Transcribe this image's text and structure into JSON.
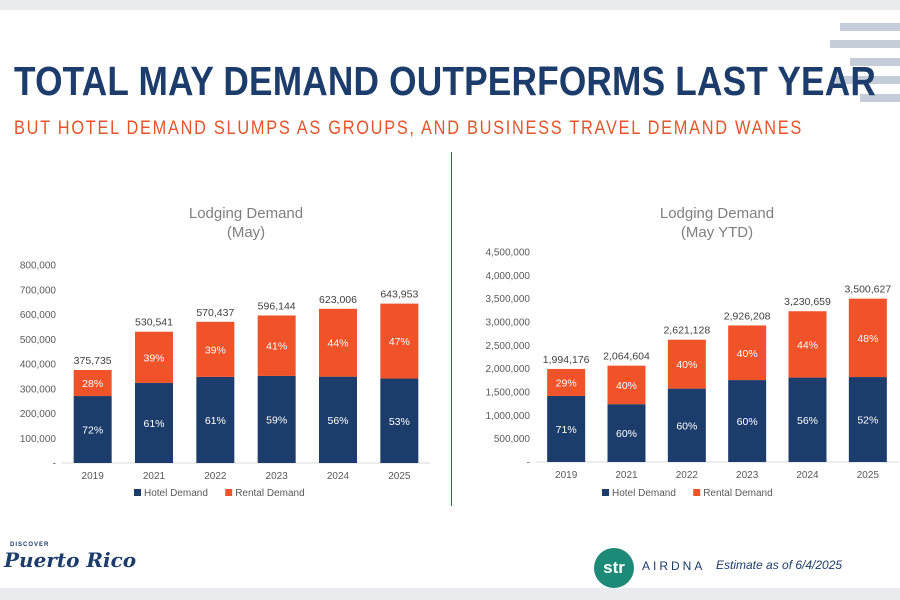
{
  "header": {
    "title": "TOTAL MAY DEMAND OUTPERFORMS LAST YEAR",
    "subtitle": "BUT HOTEL DEMAND SLUMPS AS GROUPS, AND BUSINESS TRAVEL DEMAND WANES"
  },
  "colors": {
    "title": "#1c3d6b",
    "subtitle": "#e6532a",
    "hotel": "#1c3d6b",
    "rental": "#f0522a",
    "divider": "#c0283a"
  },
  "chart_data": [
    {
      "type": "bar",
      "stacked": true,
      "title": [
        "Lodging Demand",
        "(May)"
      ],
      "categories": [
        "2019",
        "2021",
        "2022",
        "2023",
        "2024",
        "2025"
      ],
      "totals": [
        375735,
        530541,
        570437,
        596144,
        623006,
        643953
      ],
      "total_labels": [
        "375,735",
        "530,541",
        "570,437",
        "596,144",
        "623,006",
        "643,953"
      ],
      "series": [
        {
          "name": "Hotel Demand",
          "pct": [
            72,
            61,
            61,
            59,
            56,
            53
          ],
          "labels": [
            "72%",
            "61%",
            "61%",
            "59%",
            "56%",
            "53%"
          ]
        },
        {
          "name": "Rental Demand",
          "pct": [
            28,
            39,
            39,
            41,
            44,
            47
          ],
          "labels": [
            "28%",
            "39%",
            "39%",
            "41%",
            "44%",
            "47%"
          ]
        }
      ],
      "ylim": [
        0,
        800000
      ],
      "yticks": [
        "-",
        "100,000",
        "200,000",
        "300,000",
        "400,000",
        "500,000",
        "600,000",
        "700,000",
        "800,000"
      ],
      "legend": "bottom"
    },
    {
      "type": "bar",
      "stacked": true,
      "title": [
        "Lodging Demand",
        "(May YTD)"
      ],
      "categories": [
        "2019",
        "2021",
        "2022",
        "2023",
        "2024",
        "2025"
      ],
      "totals": [
        1994176,
        2064604,
        2621128,
        2926208,
        3230659,
        3500627
      ],
      "total_labels": [
        "1,994,176",
        "2,064,604",
        "2,621,128",
        "2,926,208",
        "3,230,659",
        "3,500,627"
      ],
      "series": [
        {
          "name": "Hotel Demand",
          "pct": [
            71,
            60,
            60,
            60,
            56,
            52
          ],
          "labels": [
            "71%",
            "60%",
            "60%",
            "60%",
            "56%",
            "52%"
          ]
        },
        {
          "name": "Rental Demand",
          "pct": [
            29,
            40,
            40,
            40,
            44,
            48
          ],
          "labels": [
            "29%",
            "40%",
            "40%",
            "40%",
            "44%",
            "48%"
          ]
        }
      ],
      "ylim": [
        0,
        4500000
      ],
      "yticks": [
        "-",
        "500,000",
        "1,000,000",
        "1,500,000",
        "2,000,000",
        "2,500,000",
        "3,000,000",
        "3,500,000",
        "4,000,000",
        "4,500,000"
      ],
      "legend": "bottom"
    }
  ],
  "footer": {
    "logo_small": "DISCOVER",
    "logo_main": "Puerto Rico",
    "str": "str",
    "airdna": "AIRDNA",
    "estimate": "Estimate as of 6/4/2025"
  }
}
